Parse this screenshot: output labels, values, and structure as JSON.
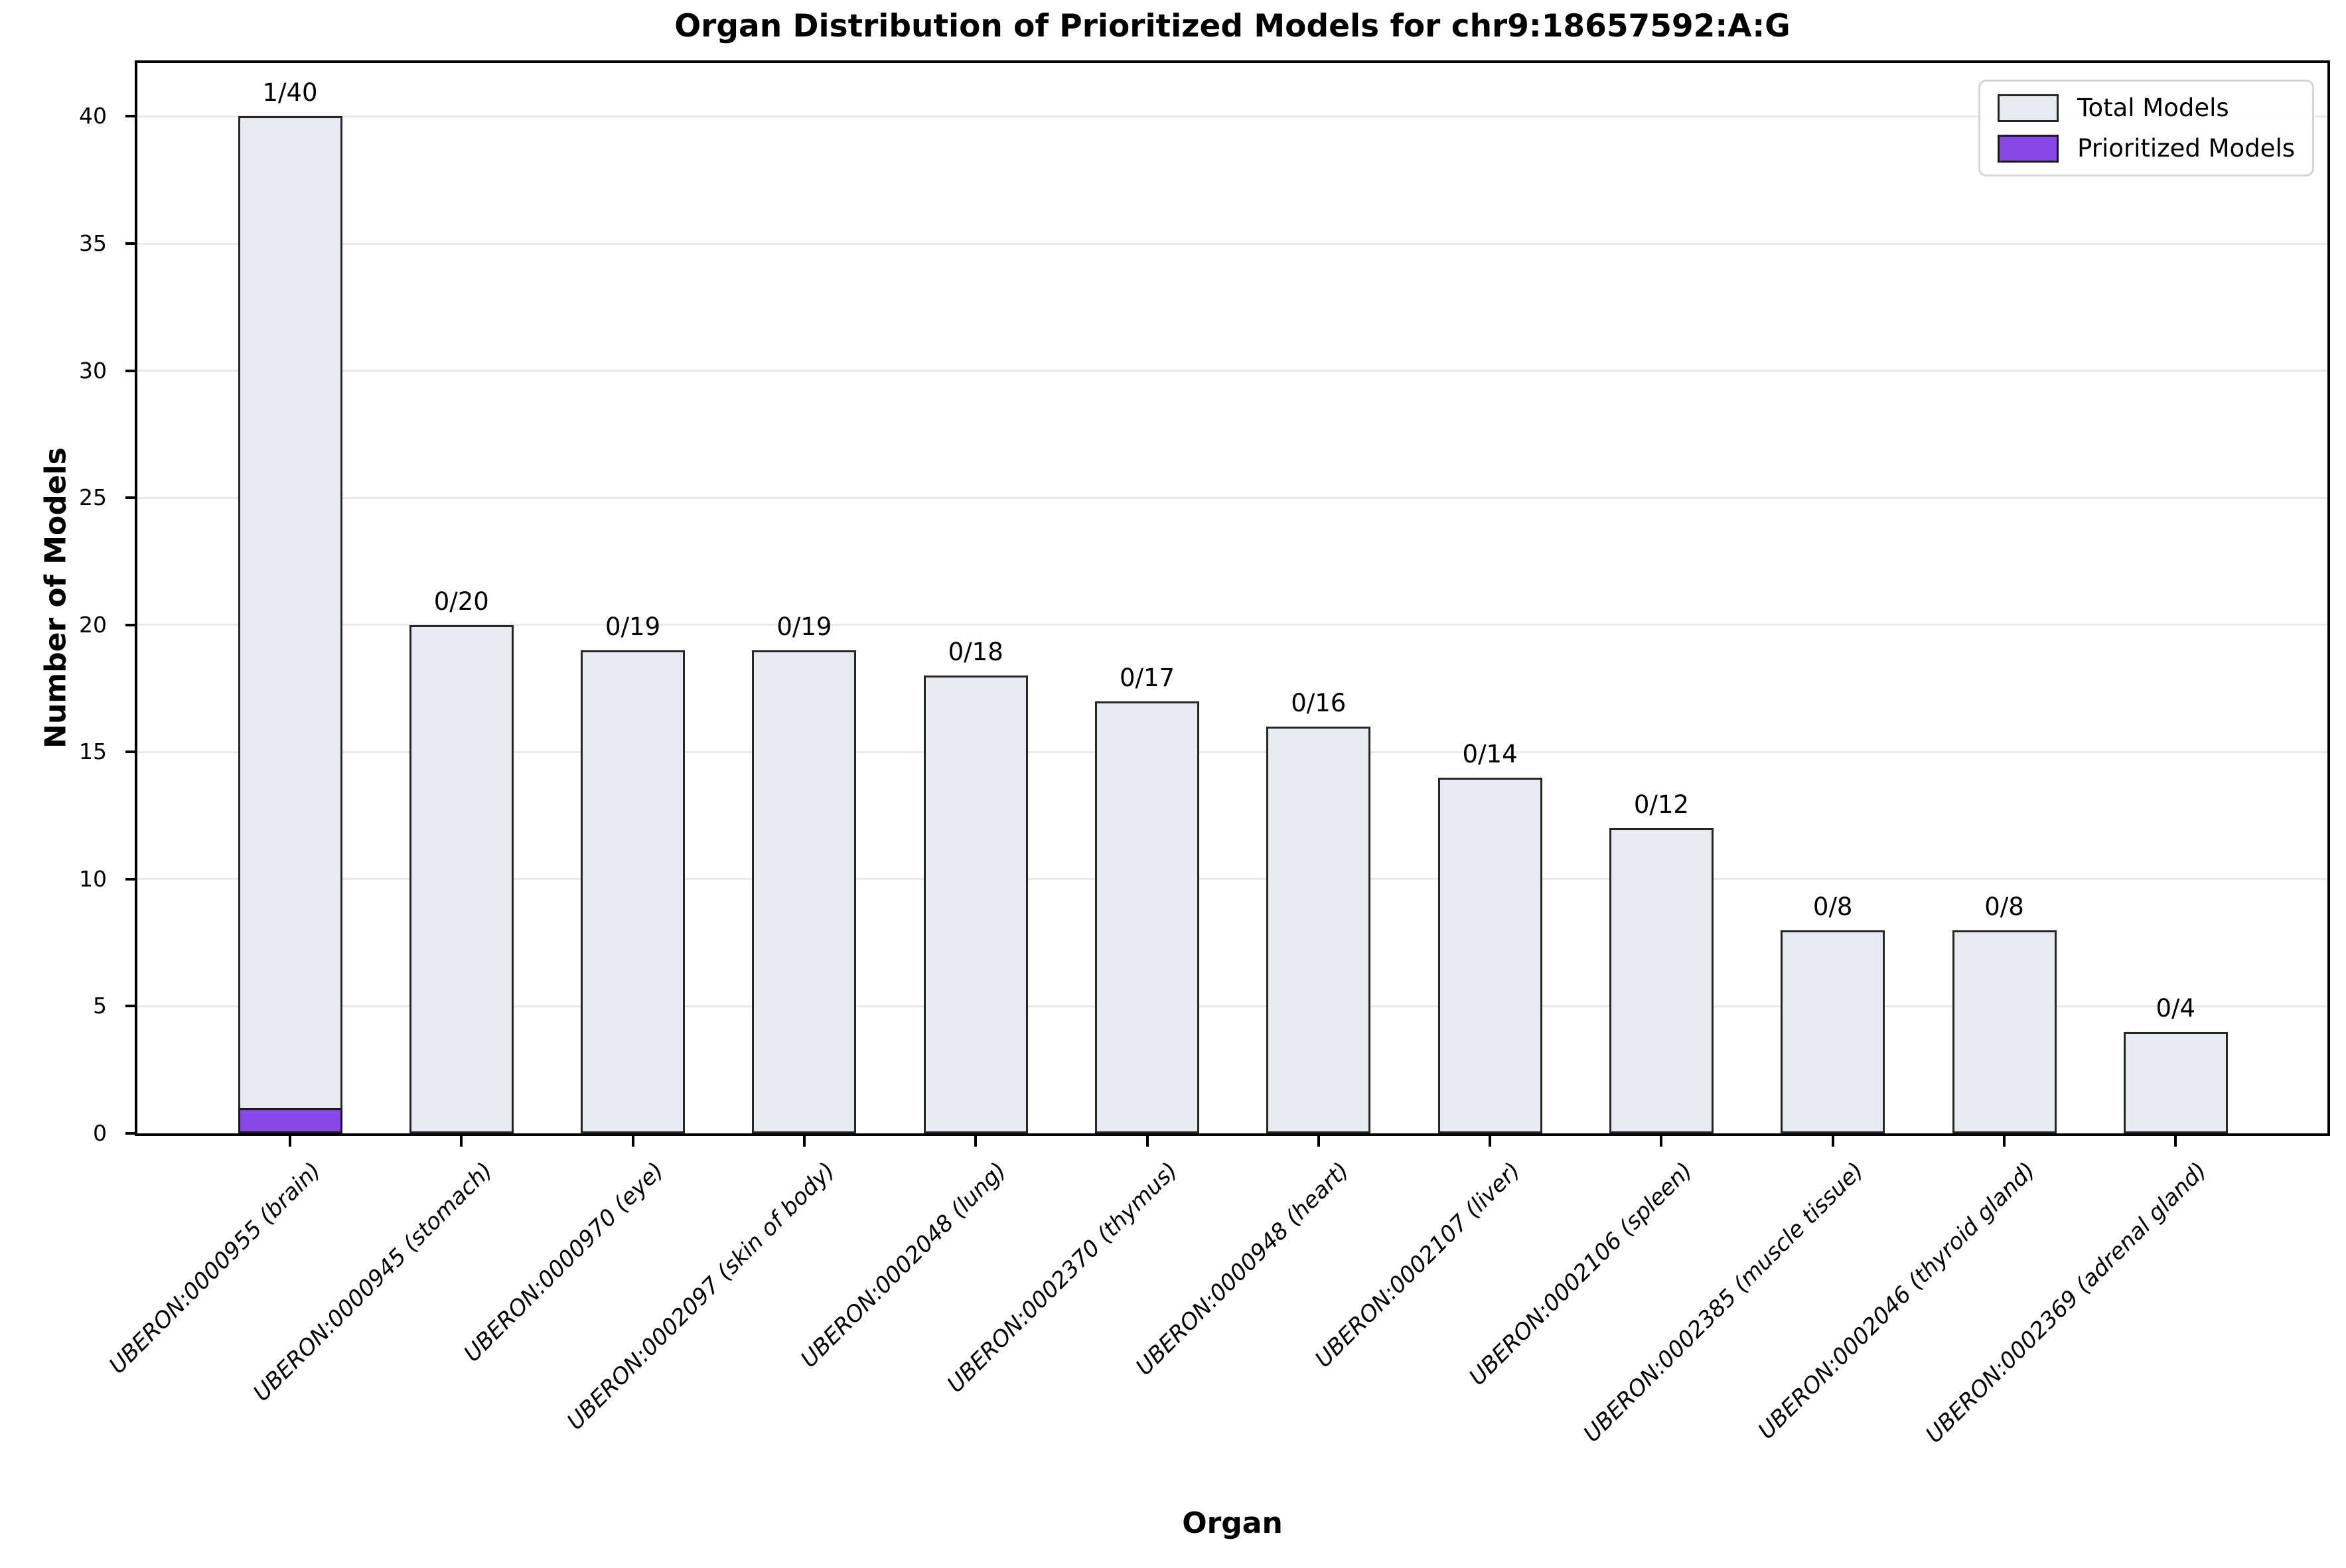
{
  "chart_data": {
    "type": "bar",
    "title": "Organ Distribution of Prioritized Models for chr9:18657592:A:G",
    "xlabel": "Organ",
    "ylabel": "Number of Models",
    "ylim": [
      0,
      42.1
    ],
    "yticks": [
      0,
      5,
      10,
      15,
      20,
      25,
      30,
      35,
      40
    ],
    "grid": "horizontal",
    "legend_position": "upper right",
    "categories": [
      "UBERON:0000955 (brain)",
      "UBERON:0000945 (stomach)",
      "UBERON:0000970 (eye)",
      "UBERON:0002097 (skin of body)",
      "UBERON:0002048 (lung)",
      "UBERON:0002370 (thymus)",
      "UBERON:0000948 (heart)",
      "UBERON:0002107 (liver)",
      "UBERON:0002106 (spleen)",
      "UBERON:0002385 (muscle tissue)",
      "UBERON:0002046 (thyroid gland)",
      "UBERON:0002369 (adrenal gland)"
    ],
    "series": [
      {
        "name": "Total Models",
        "values": [
          40,
          20,
          19,
          19,
          18,
          17,
          16,
          14,
          12,
          8,
          8,
          4
        ],
        "color": "#e9eaef",
        "edge_color": "#262626"
      },
      {
        "name": "Prioritized Models",
        "values": [
          1,
          0,
          0,
          0,
          0,
          0,
          0,
          0,
          0,
          0,
          0,
          0
        ],
        "color": "#8848e8",
        "edge_color": "#1a1a1a"
      }
    ],
    "bar_labels": [
      "1/40",
      "0/20",
      "0/19",
      "0/19",
      "0/18",
      "0/17",
      "0/16",
      "0/14",
      "0/12",
      "0/8",
      "0/8",
      "0/4"
    ]
  }
}
